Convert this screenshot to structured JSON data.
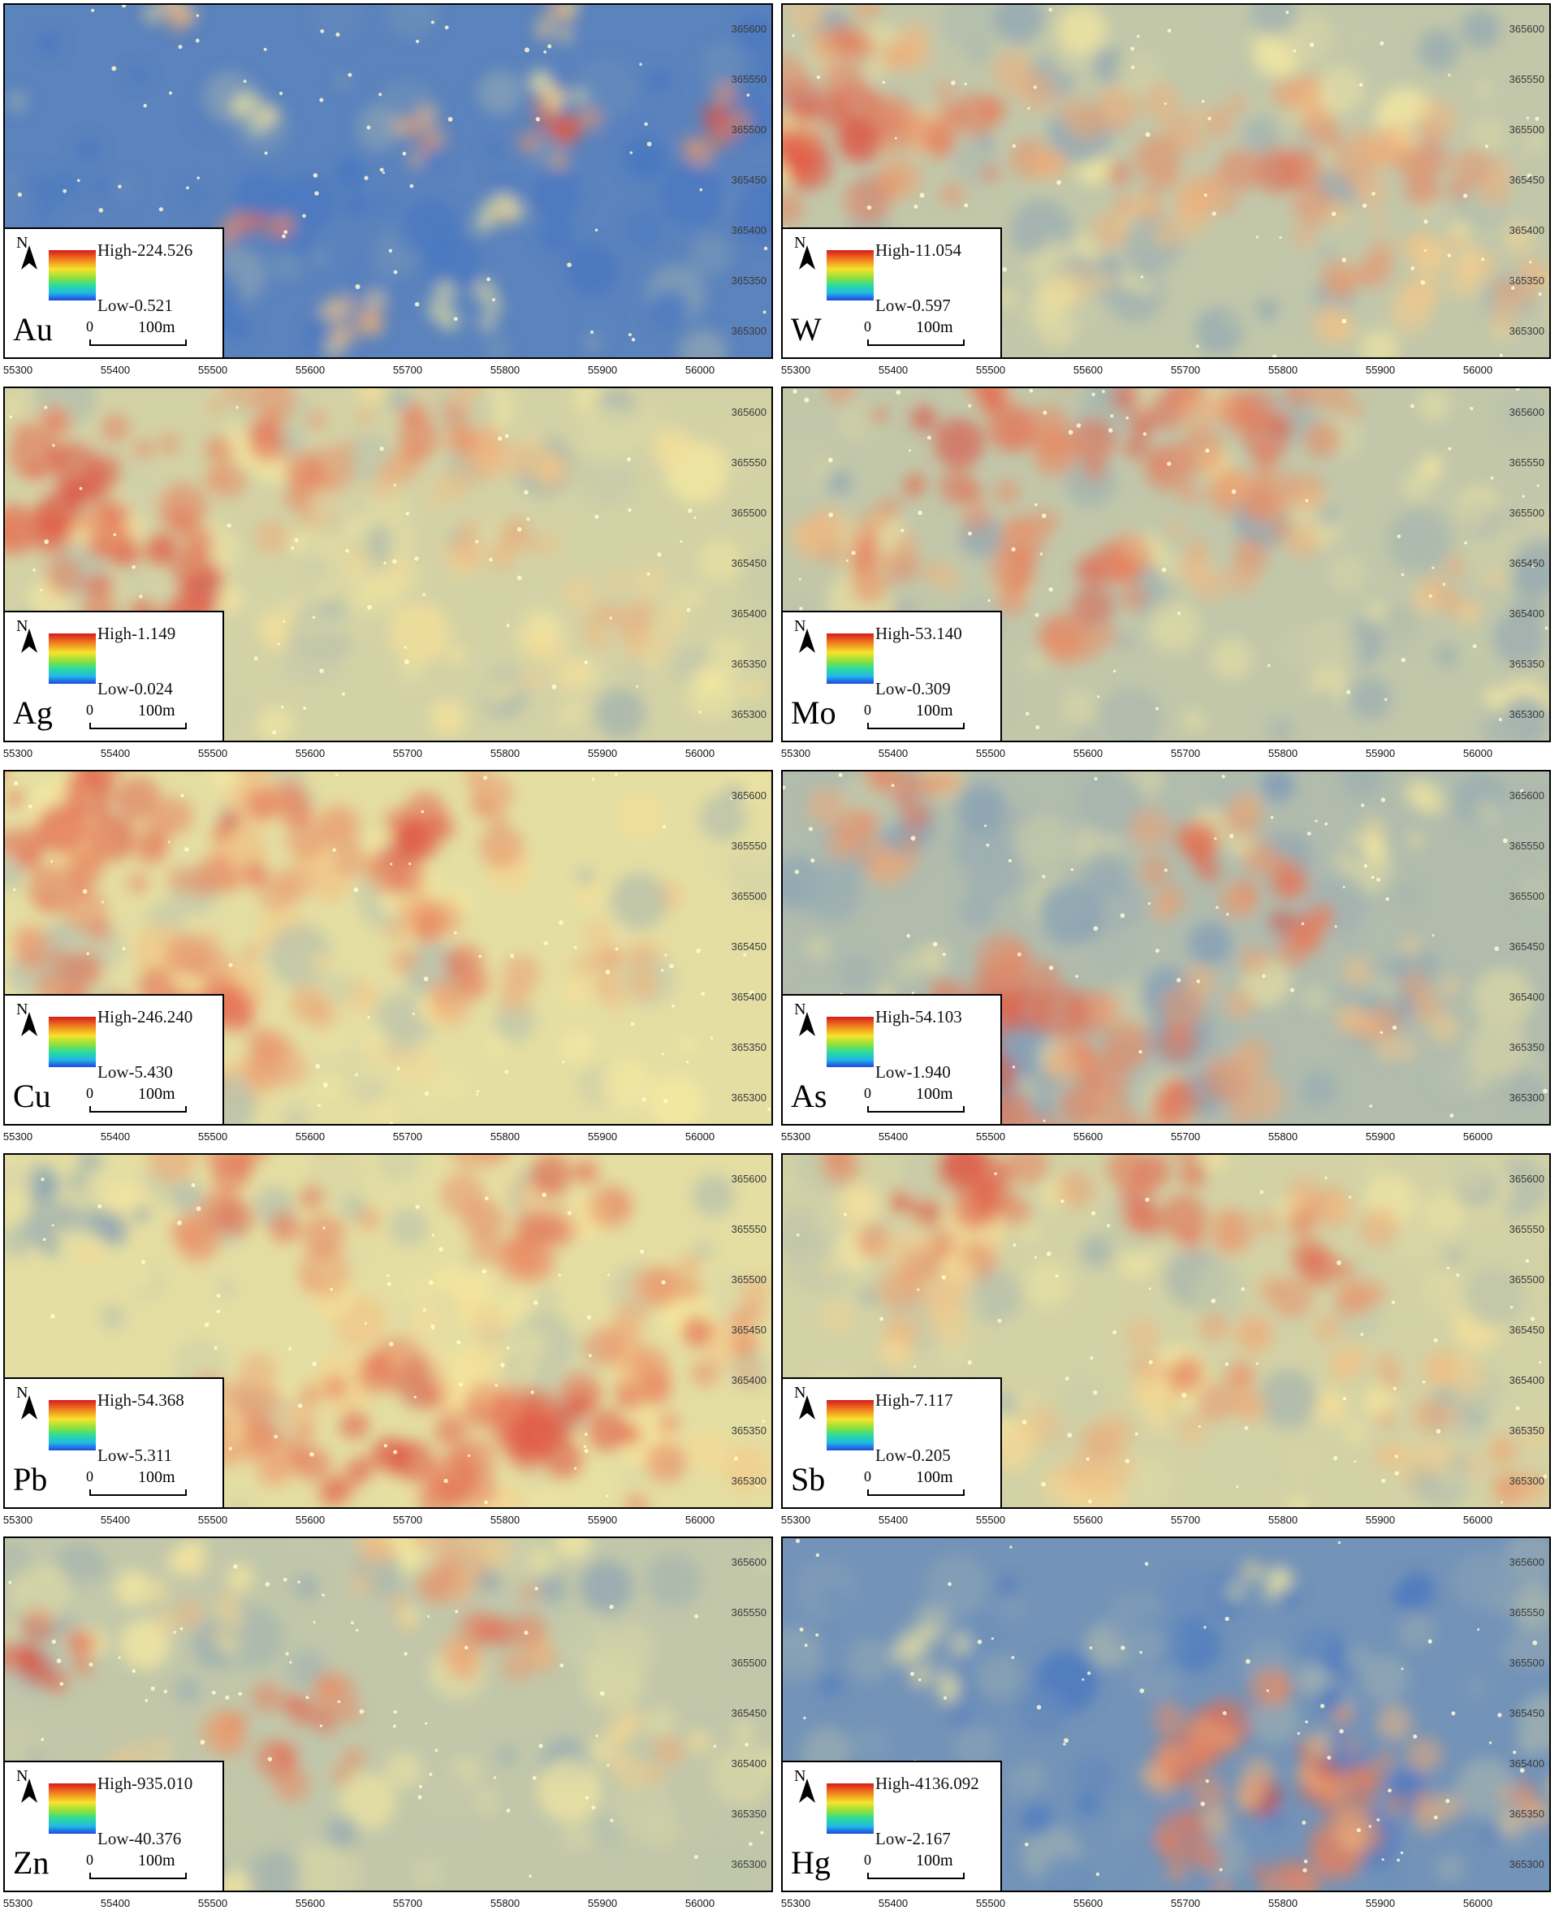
{
  "axes": {
    "x_ticks": [
      "55300",
      "55400",
      "55500",
      "55600",
      "55700",
      "55800",
      "55900",
      "56000"
    ],
    "y_ticks": [
      "365600",
      "365550",
      "365500",
      "365450",
      "365400",
      "365350",
      "365300"
    ]
  },
  "legend_common": {
    "north": "N",
    "scale_zero": "0",
    "scale_length": "100m"
  },
  "colors": {
    "high": "#d7191c",
    "mid": "#f5e9a0",
    "low": "#4a78c0"
  },
  "panels": [
    {
      "element": "Au",
      "high": "High-224.526",
      "low": "Low-0.521"
    },
    {
      "element": "W",
      "high": "High-11.054",
      "low": "Low-0.597"
    },
    {
      "element": "Ag",
      "high": "High-1.149",
      "low": "Low-0.024"
    },
    {
      "element": "Mo",
      "high": "High-53.140",
      "low": "Low-0.309"
    },
    {
      "element": "Cu",
      "high": "High-246.240",
      "low": "Low-5.430"
    },
    {
      "element": "As",
      "high": "High-54.103",
      "low": "Low-1.940"
    },
    {
      "element": "Pb",
      "high": "High-54.368",
      "low": "Low-5.311"
    },
    {
      "element": "Sb",
      "high": "High-7.117",
      "low": "Low-0.205"
    },
    {
      "element": "Zn",
      "high": "High-935.010",
      "low": "Low-40.376"
    },
    {
      "element": "Hg",
      "high": "High-4136.092",
      "low": "Low-2.167"
    }
  ]
}
